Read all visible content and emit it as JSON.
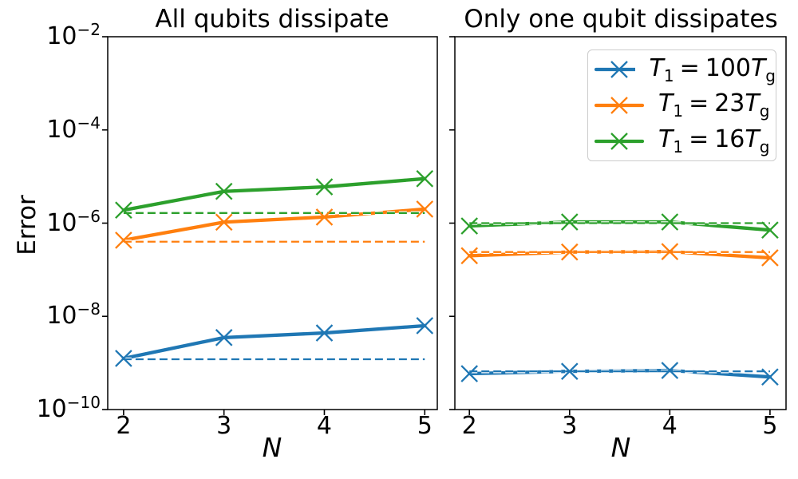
{
  "chart_data": [
    {
      "type": "line",
      "title": "All qubits dissipate",
      "xlabel": "N",
      "ylabel": "Error",
      "yscale": "log",
      "ylim": [
        1e-10,
        0.01
      ],
      "x": [
        2,
        3,
        4,
        5
      ],
      "xtick_labels": [
        "2",
        "3",
        "4",
        "5"
      ],
      "ytick_values": [
        0.01,
        0.0001,
        1e-06,
        1e-08,
        1e-10
      ],
      "ytick_base": "10",
      "ytick_exponents": [
        "−2",
        "−4",
        "−6",
        "−8",
        "−10"
      ],
      "series": [
        {
          "name": "T1 = 100Tg",
          "color": "#1f77b4",
          "marker": "x",
          "values": [
            1.25e-09,
            3.5e-09,
            4.4e-09,
            6.3e-09
          ],
          "dashed_baseline": 1.2e-09
        },
        {
          "name": "T1 = 23Tg",
          "color": "#ff7f0e",
          "marker": "x",
          "values": [
            4.3e-07,
            1.05e-06,
            1.35e-06,
            2e-06
          ],
          "dashed_baseline": 4e-07
        },
        {
          "name": "T1 = 16Tg",
          "color": "#2ca02c",
          "marker": "x",
          "values": [
            1.9e-06,
            4.8e-06,
            6e-06,
            9e-06
          ],
          "dashed_baseline": 1.65e-06
        }
      ]
    },
    {
      "type": "line",
      "title": "Only one qubit dissipates",
      "xlabel": "N",
      "yscale": "log",
      "ylim": [
        1e-10,
        0.01
      ],
      "x": [
        2,
        3,
        4,
        5
      ],
      "xtick_labels": [
        "2",
        "3",
        "4",
        "5"
      ],
      "ytick_values": [
        0.01,
        0.0001,
        1e-06,
        1e-08,
        1e-10
      ],
      "series": [
        {
          "name": "T1 = 100Tg",
          "color": "#1f77b4",
          "marker": "x",
          "values": [
            5.9e-10,
            6.6e-10,
            6.9e-10,
            5e-10
          ],
          "dashed_baseline": 6.6e-10
        },
        {
          "name": "T1 = 23Tg",
          "color": "#ff7f0e",
          "marker": "x",
          "values": [
            2e-07,
            2.4e-07,
            2.45e-07,
            1.8e-07
          ],
          "dashed_baseline": 2.4e-07
        },
        {
          "name": "T1 = 16Tg",
          "color": "#2ca02c",
          "marker": "x",
          "values": [
            8.7e-07,
            1.06e-06,
            1.06e-06,
            7.1e-07
          ],
          "dashed_baseline": 1e-06
        }
      ]
    }
  ],
  "legend": {
    "entries": [
      {
        "color": "#1f77b4",
        "var1": "T",
        "sub1": "1",
        "op": "=",
        "coeff": "100",
        "var2": "T",
        "sub2": "g"
      },
      {
        "color": "#ff7f0e",
        "var1": "T",
        "sub1": "1",
        "op": "=",
        "coeff": "23",
        "var2": "T",
        "sub2": "g"
      },
      {
        "color": "#2ca02c",
        "var1": "T",
        "sub1": "1",
        "op": "=",
        "coeff": "16",
        "var2": "T",
        "sub2": "g"
      }
    ]
  },
  "colors": {
    "axis": "#000000",
    "legend_border": "#cccccc",
    "background": "#ffffff"
  }
}
